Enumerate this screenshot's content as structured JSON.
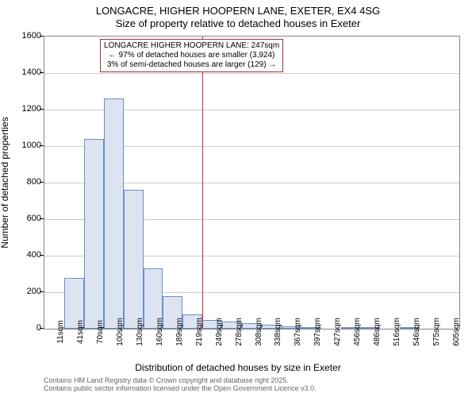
{
  "title": {
    "line1": "LONGACRE, HIGHER HOOPERN LANE, EXETER, EX4 4SG",
    "line2": "Size of property relative to detached houses in Exeter"
  },
  "chart": {
    "type": "histogram",
    "background_color": "#ffffff",
    "grid_color": "#cccccc",
    "border_color": "#888888",
    "bar_fill": "#dce4f2",
    "bar_stroke": "#6b8fc5",
    "y": {
      "label": "Number of detached properties",
      "min": 0,
      "max": 1600,
      "step": 200,
      "ticks": [
        0,
        200,
        400,
        600,
        800,
        1000,
        1200,
        1400,
        1600
      ]
    },
    "x": {
      "label": "Distribution of detached houses by size in Exeter",
      "ticks": [
        "11sqm",
        "41sqm",
        "70sqm",
        "100sqm",
        "130sqm",
        "160sqm",
        "189sqm",
        "219sqm",
        "249sqm",
        "278sqm",
        "308sqm",
        "338sqm",
        "367sqm",
        "397sqm",
        "427sqm",
        "456sqm",
        "486sqm",
        "516sqm",
        "546sqm",
        "575sqm",
        "605sqm"
      ]
    },
    "bars": [
      0,
      280,
      1040,
      1260,
      760,
      330,
      180,
      80,
      50,
      40,
      30,
      20,
      15,
      10,
      0,
      5,
      3,
      0,
      2,
      0,
      0
    ],
    "reference": {
      "position_index": 8,
      "color": "#cc3333"
    },
    "annotation": {
      "lines": [
        "LONGACRE HIGHER HOOPERN LANE: 247sqm",
        "← 97% of detached houses are smaller (3,924)",
        "3% of semi-detached houses are larger (129) →"
      ],
      "border_color": "#aa3333"
    }
  },
  "footer": {
    "line1": "Contains HM Land Registry data © Crown copyright and database right 2025.",
    "line2": "Contains public sector information licensed under the Open Government Licence v3.0."
  }
}
